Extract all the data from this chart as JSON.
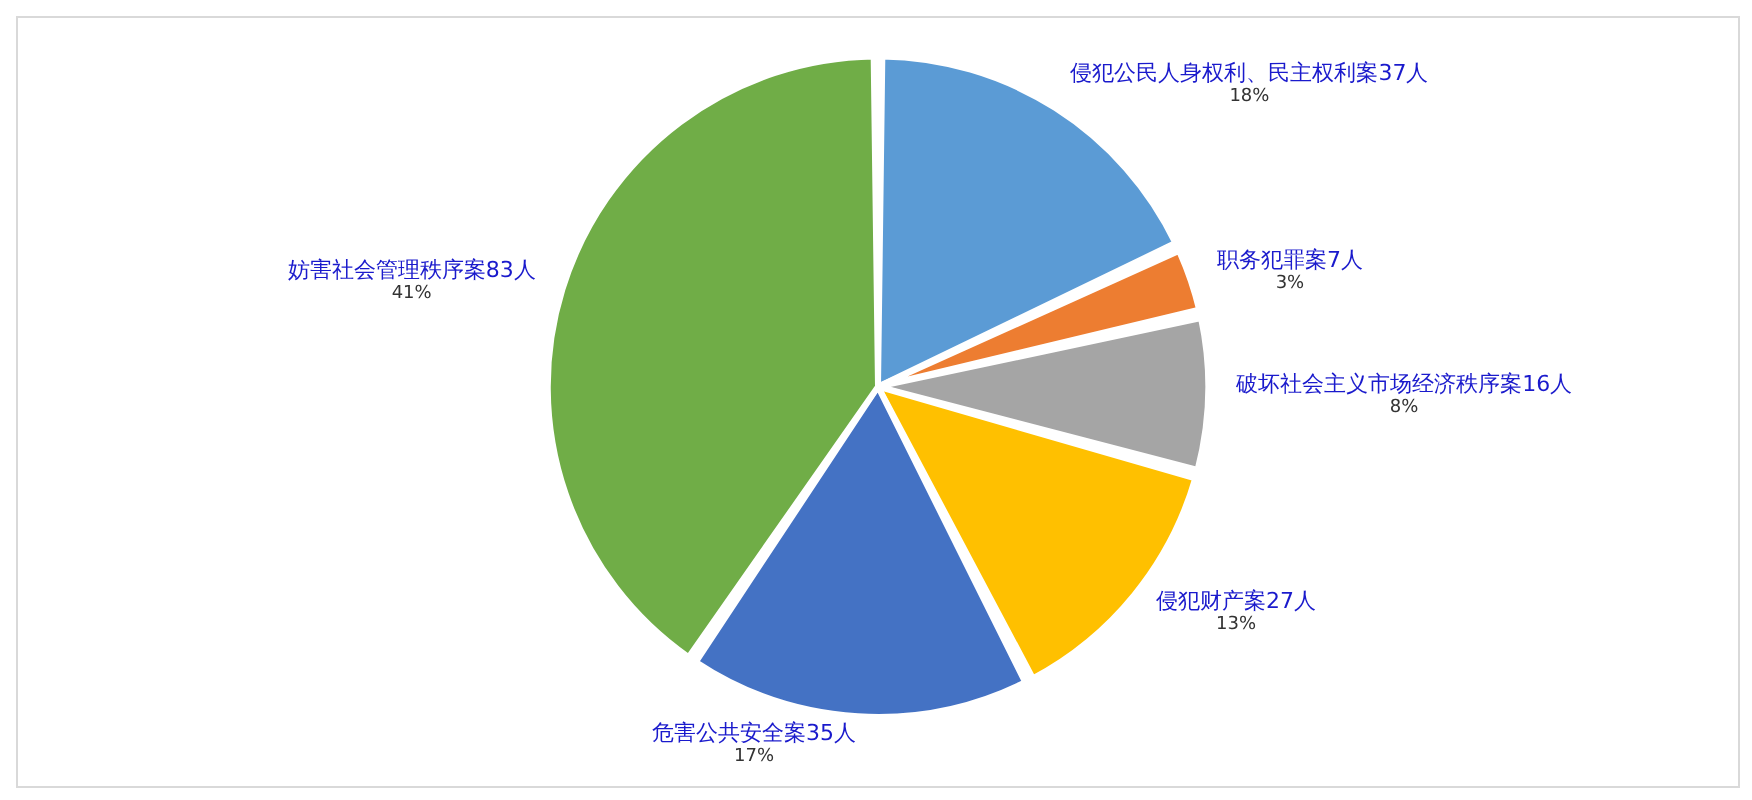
{
  "chart_data": {
    "type": "pie",
    "categories": [
      "侵犯公民人身权利、民主权利案",
      "职务犯罪案",
      "破坏社会主义市场经济秩序案",
      "侵犯财产案",
      "危害公共安全案",
      "妨害社会管理秩序案"
    ],
    "values": [
      37,
      7,
      16,
      27,
      35,
      83
    ],
    "value_labels": [
      "37人\n18%",
      "7人\n3%",
      "16人\n8%",
      "27人\n13%",
      "35人\n17%",
      "83人\n41%"
    ],
    "colors": [
      "#5b9bd5",
      "#ed7d31",
      "#a5a5a5",
      "#ffc000",
      "#4472c4",
      "#70ad47"
    ],
    "legend": false
  }
}
